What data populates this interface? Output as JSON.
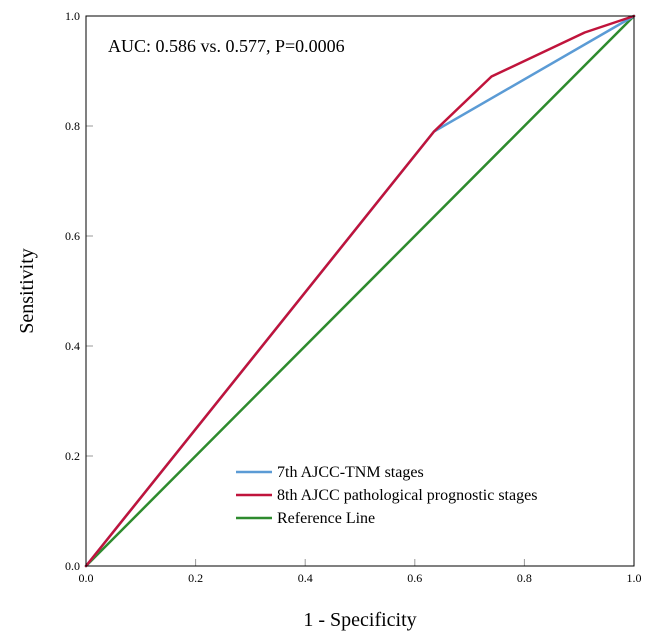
{
  "chart_data": {
    "type": "line",
    "xlabel": "1 - Specificity",
    "ylabel": "Sensitivity",
    "xlim": [
      0,
      1
    ],
    "ylim": [
      0,
      1
    ],
    "x_ticks": [
      "0.0",
      "0.2",
      "0.4",
      "0.6",
      "0.8",
      "1.0"
    ],
    "y_ticks": [
      "0.0",
      "0.2",
      "0.4",
      "0.6",
      "0.8",
      "1.0"
    ],
    "annotation": "AUC: 0.586 vs. 0.577, P=0.0006",
    "grid": false,
    "legend_position": "bottom-center",
    "series": [
      {
        "name": "7th AJCC-TNM stages",
        "color": "#5b9bd5",
        "points": [
          [
            0,
            0
          ],
          [
            0.635,
            0.79
          ],
          [
            1,
            1
          ]
        ]
      },
      {
        "name": "8th AJCC pathological prognostic stages",
        "color": "#c0143c",
        "points": [
          [
            0,
            0
          ],
          [
            0.635,
            0.79
          ],
          [
            0.74,
            0.89
          ],
          [
            0.91,
            0.97
          ],
          [
            1,
            1
          ]
        ]
      },
      {
        "name": "Reference Line",
        "color": "#2e8b2e",
        "points": [
          [
            0,
            0
          ],
          [
            1,
            1
          ]
        ]
      }
    ]
  }
}
